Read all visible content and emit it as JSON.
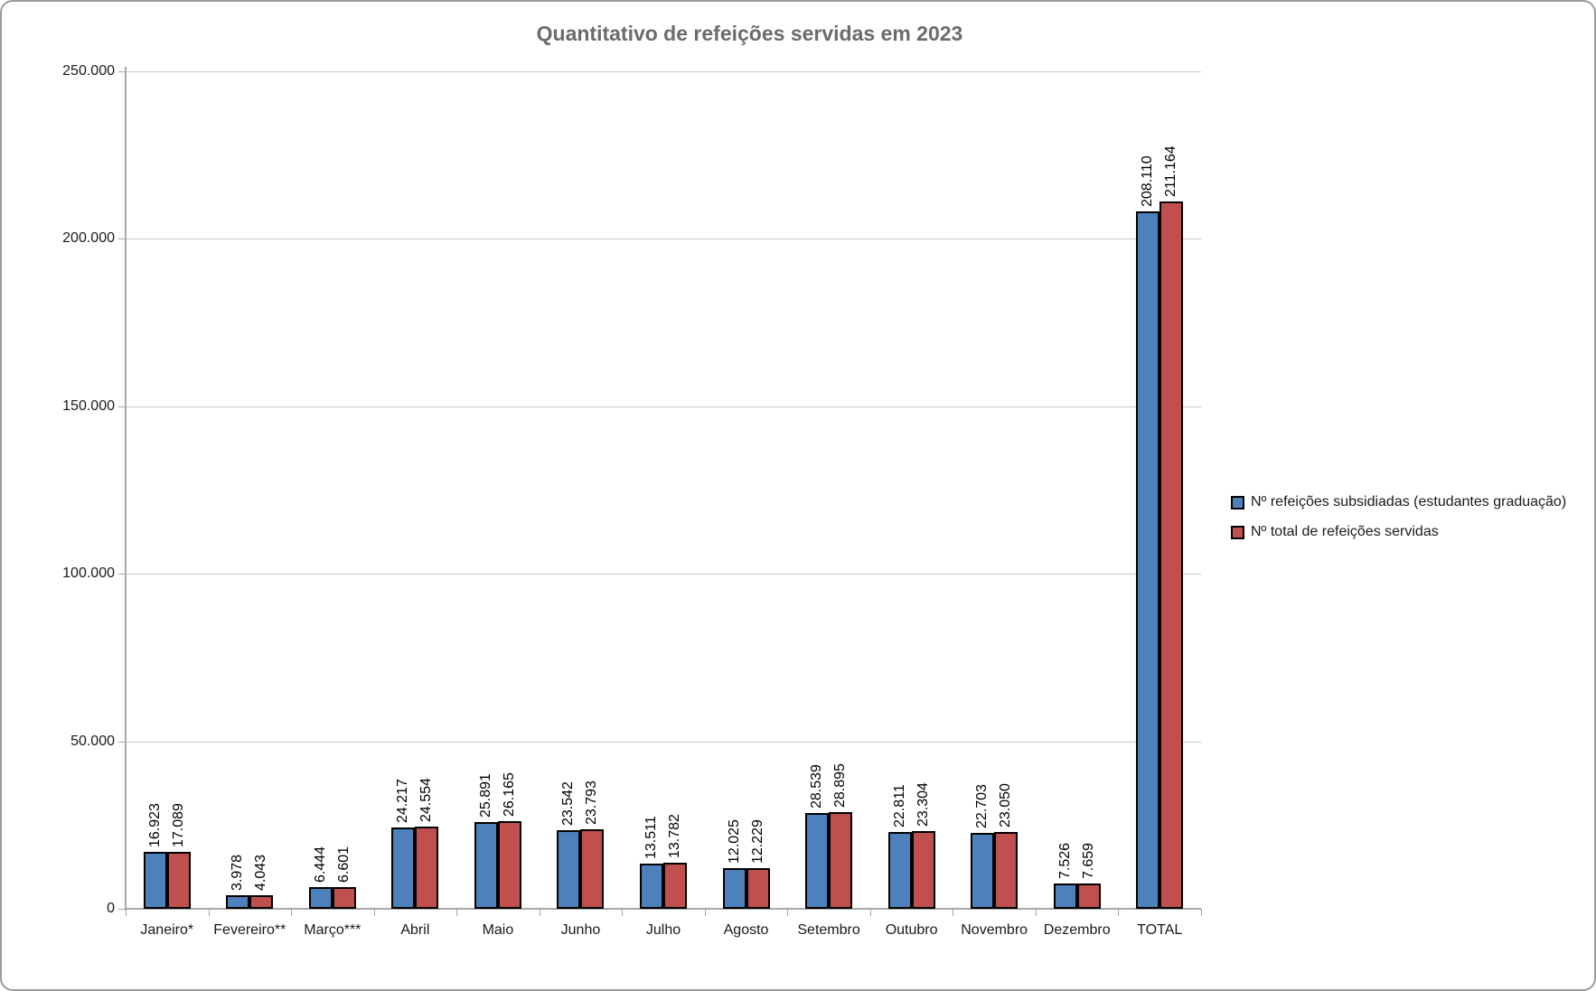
{
  "chart_data": {
    "type": "bar",
    "title": "Quantitativo de refeições servidas em 2023",
    "categories": [
      "Janeiro*",
      "Fevereiro**",
      "Março***",
      "Abril",
      "Maio",
      "Junho",
      "Julho",
      "Agosto",
      "Setembro",
      "Outubro",
      "Novembro",
      "Dezembro",
      "TOTAL"
    ],
    "series": [
      {
        "name": "Nº refeições subsidiadas (estudantes graduação)",
        "color": "#4e80bc",
        "values": [
          16923,
          3978,
          6444,
          24217,
          25891,
          23542,
          13511,
          12025,
          28539,
          22811,
          22703,
          7526,
          208110
        ],
        "labels": [
          "16.923",
          "3.978",
          "6.444",
          "24.217",
          "25.891",
          "23.542",
          "13.511",
          "12.025",
          "28.539",
          "22.811",
          "22.703",
          "7.526",
          "208.110"
        ]
      },
      {
        "name": "Nº total de refeições servidas",
        "color": "#c0504d",
        "values": [
          17089,
          4043,
          6601,
          24554,
          26165,
          23793,
          13782,
          12229,
          28895,
          23304,
          23050,
          7659,
          211164
        ],
        "labels": [
          "17.089",
          "4.043",
          "6.601",
          "24.554",
          "26.165",
          "23.793",
          "13.782",
          "12.229",
          "28.895",
          "23.304",
          "23.050",
          "7.659",
          "211.164"
        ]
      }
    ],
    "y_axis": {
      "min": 0,
      "max": 250000,
      "step": 50000,
      "tick_labels": [
        "0",
        "50.000",
        "100.000",
        "150.000",
        "200.000",
        "250.000"
      ]
    },
    "legend": {
      "position": "right"
    },
    "grid": true,
    "data_label_rotation": -90,
    "bar_border_color": "#000000",
    "colors": {
      "title": "#6b6b6b",
      "gridline": "#c9c9c9",
      "axis": "#a8a8a8",
      "text": "#1a1a1a",
      "frame_border": "#9c9c9c",
      "background": "#ffffff"
    }
  }
}
